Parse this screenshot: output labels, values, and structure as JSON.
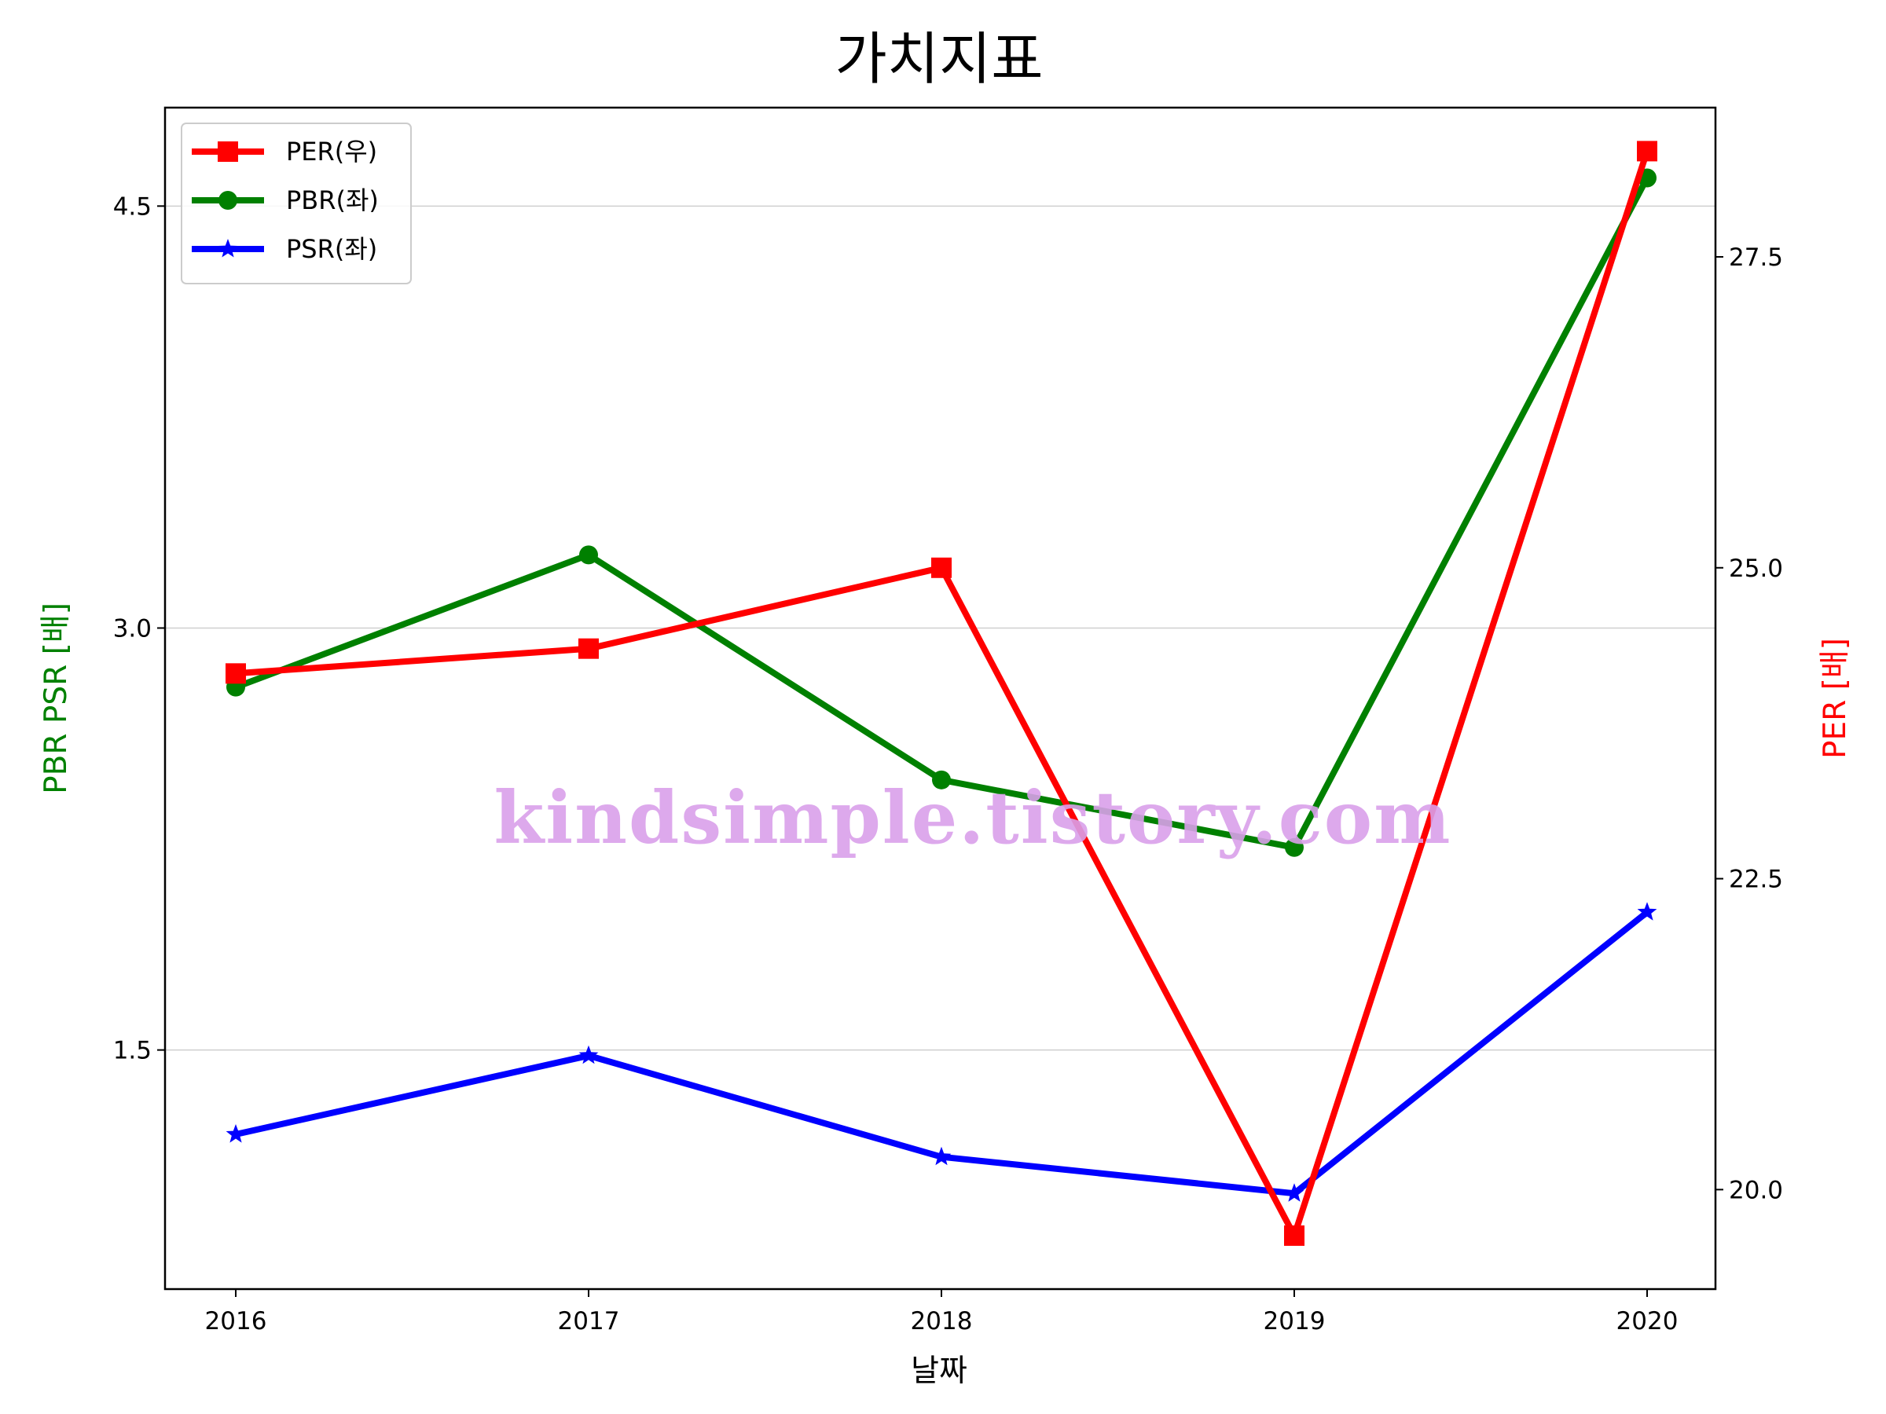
{
  "chart_data": {
    "type": "line",
    "title": "가치지표",
    "xlabel": "날짜",
    "ylabel_left": "PBR PSR [배]",
    "ylabel_right": "PER [배]",
    "categories": [
      "2016",
      "2017",
      "2018",
      "2019",
      "2020"
    ],
    "y_left": {
      "lim": [
        0.65,
        4.85
      ],
      "ticks": [
        "1.5",
        "3.0",
        "4.5"
      ],
      "tick_values": [
        1.5,
        3.0,
        4.5
      ]
    },
    "y_right": {
      "lim": [
        19.2,
        28.7
      ],
      "ticks": [
        "20.0",
        "22.5",
        "25.0",
        "27.5"
      ],
      "tick_values": [
        20.0,
        22.5,
        25.0,
        27.5
      ]
    },
    "grid": "horizontal, left axis",
    "legend_position": "upper left",
    "series": [
      {
        "name": "PER(우)",
        "axis": "right",
        "color": "#ff0000",
        "marker": "square",
        "values": [
          24.15,
          24.35,
          25.0,
          19.63,
          28.35
        ]
      },
      {
        "name": "PBR(좌)",
        "axis": "left",
        "color": "#008000",
        "marker": "circle",
        "values": [
          2.79,
          3.26,
          2.46,
          2.22,
          4.6
        ]
      },
      {
        "name": "PSR(좌)",
        "axis": "left",
        "color": "#0000ff",
        "marker": "star",
        "values": [
          1.2,
          1.48,
          1.12,
          0.99,
          1.99
        ]
      }
    ],
    "left_label_color": "#008000",
    "right_label_color": "#ff0000"
  },
  "watermark": "kindsimple.tistory.com"
}
